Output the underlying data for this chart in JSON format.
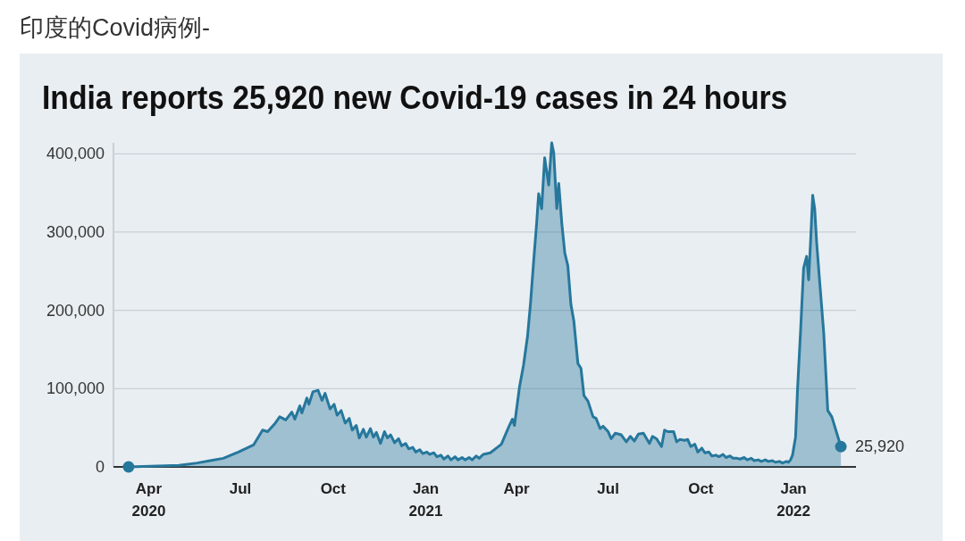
{
  "chart_data": {
    "type": "area",
    "title": "India reports 25,920 new Covid-19 cases in 24 hours",
    "annotations": [
      "印度的Covid病例-",
      {
        "text": "25,920",
        "x": "2022-02-17",
        "y": 25920
      }
    ],
    "xlim": [
      "2020-02-26",
      "2022-03-04"
    ],
    "xticks": [
      {
        "value": "2020-04-01",
        "label": "Apr\n2020"
      },
      {
        "value": "2020-07-01",
        "label": "Jul"
      },
      {
        "value": "2020-10-01",
        "label": "Oct"
      },
      {
        "value": "2021-01-01",
        "label": "Jan\n2021"
      },
      {
        "value": "2021-04-01",
        "label": "Apr"
      },
      {
        "value": "2021-07-01",
        "label": "Jul"
      },
      {
        "value": "2021-10-01",
        "label": "Oct"
      },
      {
        "value": "2022-01-01",
        "label": "Jan\n2022"
      }
    ],
    "ylim": [
      0,
      414000
    ],
    "yticks": [
      0,
      {
        "value": 100000,
        "label": "100,000"
      },
      {
        "value": 200000,
        "label": "200,000"
      },
      {
        "value": 300000,
        "label": "300,000"
      },
      {
        "value": 400000,
        "label": "400,000"
      }
    ],
    "grid": "y",
    "series": [
      {
        "color": "#26779c",
        "x": [
          "2020-03-12",
          "2020-04-10",
          "2020-05-01",
          "2020-05-19",
          "2020-06-01",
          "2020-06-14",
          "2020-06-29",
          "2020-07-14",
          "2020-07-23",
          "2020-07-28",
          "2020-08-04",
          "2020-08-09",
          "2020-08-15",
          "2020-08-21",
          "2020-08-24",
          "2020-08-29",
          "2020-08-31",
          "2020-09-05",
          "2020-09-07",
          "2020-09-11",
          "2020-09-16",
          "2020-09-20",
          "2020-09-23",
          "2020-09-28",
          "2020-10-02",
          "2020-10-05",
          "2020-10-09",
          "2020-10-13",
          "2020-10-17",
          "2020-10-20",
          "2020-10-24",
          "2020-10-27",
          "2020-10-31",
          "2020-11-03",
          "2020-11-07",
          "2020-11-10",
          "2020-11-13",
          "2020-11-17",
          "2020-11-21",
          "2020-11-24",
          "2020-11-27",
          "2020-12-01",
          "2020-12-05",
          "2020-12-08",
          "2020-12-12",
          "2020-12-15",
          "2020-12-19",
          "2020-12-22",
          "2020-12-26",
          "2020-12-29",
          "2021-01-02",
          "2021-01-05",
          "2021-01-09",
          "2021-01-12",
          "2021-01-16",
          "2021-01-19",
          "2021-01-23",
          "2021-01-26",
          "2021-01-30",
          "2021-02-02",
          "2021-02-06",
          "2021-02-09",
          "2021-02-13",
          "2021-02-16",
          "2021-02-20",
          "2021-02-23",
          "2021-02-27",
          "2021-03-06",
          "2021-03-13",
          "2021-03-17",
          "2021-03-22",
          "2021-03-25",
          "2021-03-28",
          "2021-03-30",
          "2021-04-04",
          "2021-04-08",
          "2021-04-12",
          "2021-04-15",
          "2021-04-18",
          "2021-04-21",
          "2021-04-23",
          "2021-04-26",
          "2021-04-29",
          "2021-05-03",
          "2021-05-06",
          "2021-05-08",
          "2021-05-11",
          "2021-05-13",
          "2021-05-16",
          "2021-05-19",
          "2021-05-22",
          "2021-05-25",
          "2021-05-28",
          "2021-06-01",
          "2021-06-04",
          "2021-06-07",
          "2021-06-11",
          "2021-06-16",
          "2021-06-19",
          "2021-06-23",
          "2021-06-26",
          "2021-07-01",
          "2021-07-04",
          "2021-07-08",
          "2021-07-14",
          "2021-07-19",
          "2021-07-23",
          "2021-07-27",
          "2021-07-31",
          "2021-08-05",
          "2021-08-11",
          "2021-08-14",
          "2021-08-18",
          "2021-08-23",
          "2021-08-26",
          "2021-08-29",
          "2021-09-04",
          "2021-09-07",
          "2021-09-10",
          "2021-09-15",
          "2021-09-18",
          "2021-09-21",
          "2021-09-25",
          "2021-09-28",
          "2021-10-02",
          "2021-10-05",
          "2021-10-09",
          "2021-10-12",
          "2021-10-16",
          "2021-10-19",
          "2021-10-23",
          "2021-10-26",
          "2021-10-30",
          "2021-11-02",
          "2021-11-06",
          "2021-11-09",
          "2021-11-13",
          "2021-11-16",
          "2021-11-20",
          "2021-11-23",
          "2021-11-27",
          "2021-11-30",
          "2021-12-04",
          "2021-12-07",
          "2021-12-11",
          "2021-12-14",
          "2021-12-18",
          "2021-12-21",
          "2021-12-25",
          "2021-12-27",
          "2021-12-29",
          "2021-12-31",
          "2022-01-03",
          "2022-01-05",
          "2022-01-08",
          "2022-01-11",
          "2022-01-14",
          "2022-01-16",
          "2022-01-18",
          "2022-01-20",
          "2022-01-22",
          "2022-01-24",
          "2022-01-27",
          "2022-01-31",
          "2022-02-04",
          "2022-02-08",
          "2022-02-17"
        ],
        "values": [
          0,
          1000,
          2000,
          5000,
          8000,
          11000,
          19000,
          28000,
          47000,
          45000,
          55000,
          64000,
          60000,
          70000,
          61000,
          78000,
          69000,
          88000,
          80000,
          96000,
          98000,
          85000,
          94000,
          74000,
          80000,
          66000,
          72000,
          56000,
          62000,
          47000,
          53000,
          37000,
          48000,
          38000,
          49000,
          38000,
          44000,
          30000,
          45000,
          37000,
          41000,
          31000,
          36000,
          27000,
          30000,
          23000,
          25000,
          19000,
          22000,
          17000,
          19000,
          16000,
          18000,
          13000,
          15000,
          10000,
          14000,
          9000,
          13000,
          9000,
          12000,
          9000,
          12000,
          9000,
          14000,
          11000,
          16000,
          18000,
          25000,
          29000,
          44000,
          53000,
          61000,
          53000,
          102000,
          130000,
          167000,
          210000,
          262000,
          311000,
          349000,
          330000,
          395000,
          360000,
          414000,
          401000,
          330000,
          362000,
          311000,
          273000,
          257000,
          208000,
          186000,
          132000,
          126000,
          91000,
          84000,
          64000,
          62000,
          49000,
          52000,
          45000,
          36000,
          43000,
          41000,
          32000,
          39000,
          33000,
          42000,
          43000,
          30000,
          39000,
          36000,
          26000,
          47000,
          45000,
          45000,
          32000,
          35000,
          34000,
          35000,
          26000,
          29000,
          19000,
          24000,
          18000,
          19000,
          14000,
          15000,
          13000,
          16000,
          12000,
          14000,
          11000,
          11000,
          10000,
          12000,
          9000,
          11000,
          8000,
          9000,
          7000,
          9000,
          7000,
          8000,
          6000,
          7000,
          5000,
          7000,
          6000,
          9000,
          15000,
          38000,
          100000,
          174000,
          254000,
          269000,
          239000,
          290000,
          347000,
          330000,
          286000,
          236000,
          171000,
          72000,
          64000,
          25920
        ]
      },
      {
        "type": "scatter",
        "color": "#26779c",
        "marker": "circle",
        "x": [
          "2020-03-12",
          "2022-02-17"
        ],
        "values": [
          0,
          25920
        ]
      }
    ]
  }
}
